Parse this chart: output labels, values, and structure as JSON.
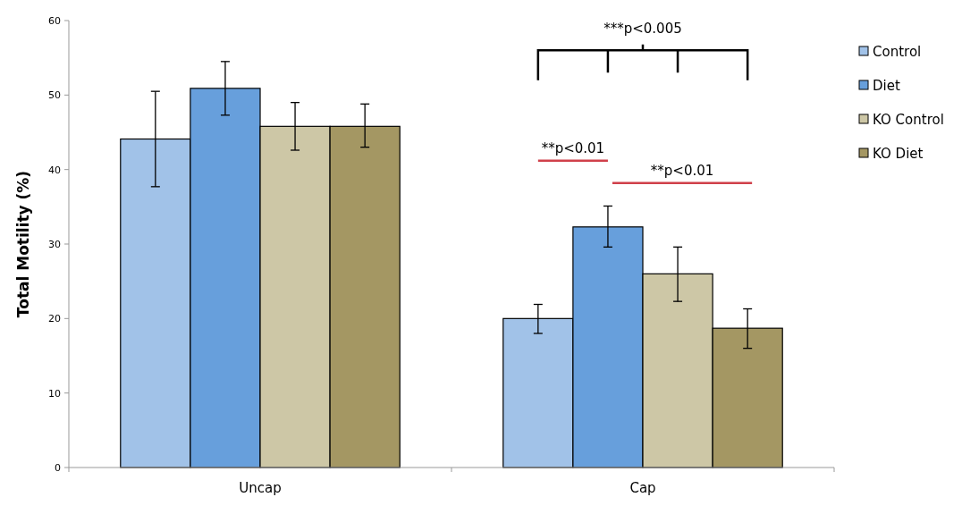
{
  "chart_data": {
    "type": "bar",
    "ylabel": "Total Motility (%)",
    "categories": [
      "Uncap",
      "Cap"
    ],
    "series": [
      {
        "name": "Control",
        "color": "#a1c2e8",
        "values": [
          44.1,
          20.0
        ],
        "errors": [
          [
            37.7,
            50.5
          ],
          [
            18.0,
            21.9
          ]
        ]
      },
      {
        "name": "Diet",
        "color": "#679fdc",
        "values": [
          50.9,
          32.3
        ],
        "errors": [
          [
            47.3,
            54.5
          ],
          [
            29.6,
            35.1
          ]
        ]
      },
      {
        "name": "KO Control",
        "color": "#cdc7a6",
        "values": [
          45.8,
          26.0
        ],
        "errors": [
          [
            42.6,
            49.0
          ],
          [
            22.3,
            29.6
          ]
        ]
      },
      {
        "name": "KO Diet",
        "color": "#a49763",
        "values": [
          45.8,
          18.7
        ],
        "errors": [
          [
            43.0,
            48.8
          ],
          [
            16.0,
            21.3
          ]
        ]
      }
    ],
    "ylim": [
      0,
      60
    ],
    "yticks": [
      0,
      10,
      20,
      30,
      40,
      50,
      60
    ],
    "grid": false,
    "legend": "right",
    "annotations": [
      "***p<0.005",
      "**p<0.01",
      "**p<0.01"
    ]
  }
}
